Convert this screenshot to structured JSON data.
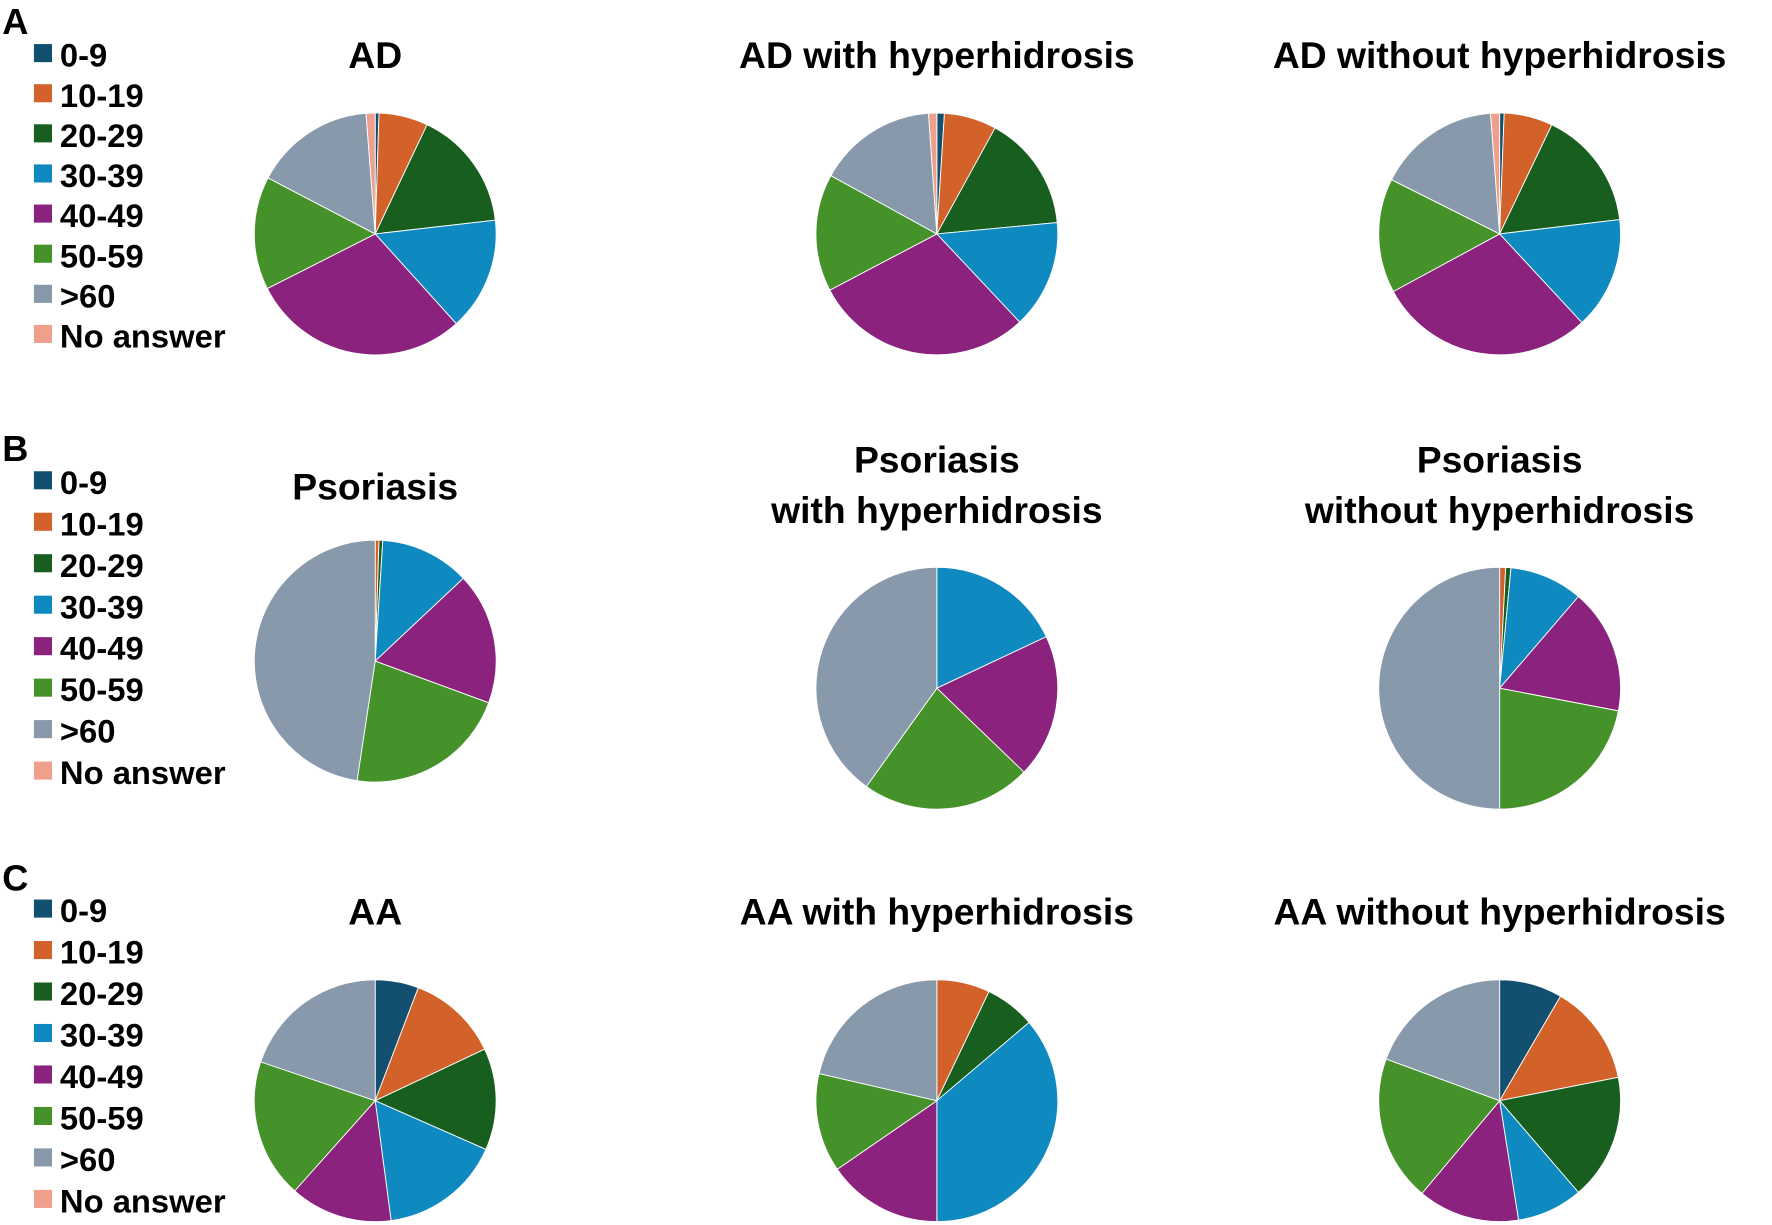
{
  "chart_data": {
    "type": "pie",
    "unit": "percent",
    "legend_placement": "left",
    "categories": [
      "0-9",
      "10-19",
      "20-29",
      "30-39",
      "40-49",
      "50-59",
      ">60",
      "No answer"
    ],
    "colors": [
      "#13506f",
      "#d2612a",
      "#175e1f",
      "#0f8ac0",
      "#8b237e",
      "#45922a",
      "#8799aa",
      "#eea08c"
    ],
    "panels": [
      {
        "label": "A",
        "charts": [
          {
            "title": [
              "AD"
            ],
            "values": [
              0.5,
              6.5,
              16,
              15,
              29,
              15,
              16,
              1.2
            ]
          },
          {
            "title": [
              "AD with hyperhidrosis"
            ],
            "values": [
              1,
              7,
              15.5,
              14.5,
              29.3,
              15.7,
              15.9,
              1.1
            ]
          },
          {
            "title": [
              "AD without hyperhidrosis"
            ],
            "values": [
              0.6,
              6.5,
              16,
              15,
              29,
              15.3,
              16.4,
              1.2
            ]
          }
        ]
      },
      {
        "label": "B",
        "charts": [
          {
            "title": [
              "Psoriasis"
            ],
            "values": [
              0,
              0.5,
              0.5,
              12,
              17.6,
              21.8,
              47.6,
              0
            ]
          },
          {
            "title": [
              "Psoriasis",
              "with hyperhidrosis"
            ],
            "values": [
              0,
              0,
              0,
              18,
              19.2,
              22.7,
              40.1,
              0
            ]
          },
          {
            "title": [
              "Psoriasis",
              "without hyperhidrosis"
            ],
            "values": [
              0,
              0.8,
              0.7,
              9.8,
              16.7,
              22,
              50,
              0
            ]
          }
        ]
      },
      {
        "label": "C",
        "charts": [
          {
            "title": [
              "AA"
            ],
            "values": [
              5.8,
              12.2,
              13.6,
              16.3,
              13.7,
              18.6,
              19.8,
              0
            ]
          },
          {
            "title": [
              "AA with hyperhidrosis"
            ],
            "values": [
              0,
              7.1,
              6.7,
              36.2,
              15.4,
              13.2,
              21.4,
              0
            ]
          },
          {
            "title": [
              "AA without hyperhidrosis"
            ],
            "values": [
              8.4,
              13.5,
              16.8,
              8.8,
              13.6,
              19.5,
              19.4,
              0
            ]
          }
        ]
      }
    ]
  }
}
